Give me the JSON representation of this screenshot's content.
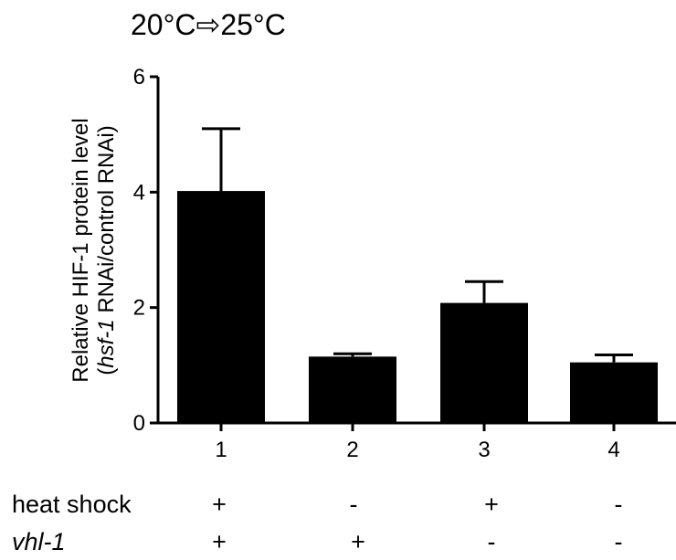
{
  "chart_data": {
    "type": "bar",
    "title": "20°C⇨25°C",
    "ylabel_line1": "Relative HIF-1 protein level",
    "ylabel_line2_italic": "hsf-1",
    "ylabel_line2_rest": " RNAi/control RNAi)",
    "ylabel_line2_open": "(",
    "categories": [
      "1",
      "2",
      "3",
      "4"
    ],
    "values": [
      4.02,
      1.15,
      2.08,
      1.05
    ],
    "errors": [
      1.08,
      0.05,
      0.37,
      0.13
    ],
    "ylim": [
      0,
      6
    ],
    "yticks": [
      "0",
      "2",
      "4",
      "6"
    ],
    "bar_color": "#000000",
    "grid": false
  },
  "conditions": [
    {
      "label": "heat shock",
      "italic": false,
      "values": [
        "+",
        "-",
        "+",
        "-"
      ]
    },
    {
      "label": "vhl-1",
      "italic": true,
      "values": [
        "+",
        "+",
        "-",
        "-"
      ]
    }
  ]
}
